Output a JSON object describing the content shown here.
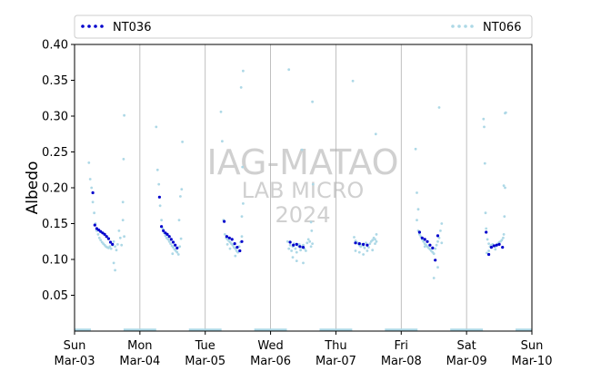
{
  "chart_data": {
    "type": "scatter",
    "ylabel": "Albedo",
    "xlabel": "",
    "ylim": [
      0.0,
      0.4
    ],
    "yticks": [
      "0.05",
      "0.10",
      "0.15",
      "0.20",
      "0.25",
      "0.30",
      "0.35",
      "0.40"
    ],
    "xlim_days": [
      0,
      7
    ],
    "xticks": [
      {
        "day": "Sun",
        "date": "Mar-03"
      },
      {
        "day": "Mon",
        "date": "Mar-04"
      },
      {
        "day": "Tue",
        "date": "Mar-05"
      },
      {
        "day": "Wed",
        "date": "Mar-06"
      },
      {
        "day": "Thu",
        "date": "Mar-07"
      },
      {
        "day": "Fri",
        "date": "Mar-08"
      },
      {
        "day": "Sat",
        "date": "Mar-09"
      },
      {
        "day": "Sun",
        "date": "Mar-10"
      }
    ],
    "grid": "vertical at day boundaries",
    "legend_placement": "top, outside plot",
    "watermark": {
      "line1": "IAG-MATAO",
      "line2": "LAB MICRO",
      "line3": "2024"
    },
    "series": [
      {
        "name": "NT036",
        "color": "#0000cc",
        "marker": "dot",
        "day_points": [
          [
            [
              0.28,
              0.193
            ],
            [
              0.31,
              0.148
            ],
            [
              0.34,
              0.143
            ],
            [
              0.37,
              0.141
            ],
            [
              0.4,
              0.139
            ],
            [
              0.43,
              0.137
            ],
            [
              0.46,
              0.135
            ],
            [
              0.49,
              0.132
            ],
            [
              0.52,
              0.129
            ],
            [
              0.55,
              0.124
            ],
            [
              0.58,
              0.121
            ]
          ],
          [
            [
              0.3,
              0.187
            ],
            [
              0.33,
              0.146
            ],
            [
              0.36,
              0.14
            ],
            [
              0.39,
              0.137
            ],
            [
              0.42,
              0.135
            ],
            [
              0.45,
              0.132
            ],
            [
              0.48,
              0.128
            ],
            [
              0.51,
              0.124
            ],
            [
              0.54,
              0.12
            ],
            [
              0.57,
              0.116
            ]
          ],
          [
            [
              0.29,
              0.153
            ],
            [
              0.33,
              0.132
            ],
            [
              0.37,
              0.13
            ],
            [
              0.41,
              0.128
            ],
            [
              0.45,
              0.122
            ],
            [
              0.49,
              0.117
            ],
            [
              0.53,
              0.112
            ],
            [
              0.56,
              0.125
            ]
          ],
          [
            [
              0.3,
              0.124
            ],
            [
              0.35,
              0.12
            ],
            [
              0.4,
              0.121
            ],
            [
              0.45,
              0.118
            ],
            [
              0.5,
              0.117
            ]
          ],
          [
            [
              0.3,
              0.123
            ],
            [
              0.36,
              0.122
            ],
            [
              0.42,
              0.121
            ],
            [
              0.48,
              0.12
            ]
          ],
          [
            [
              0.28,
              0.138
            ],
            [
              0.32,
              0.13
            ],
            [
              0.36,
              0.128
            ],
            [
              0.4,
              0.125
            ],
            [
              0.44,
              0.12
            ],
            [
              0.48,
              0.116
            ],
            [
              0.52,
              0.099
            ],
            [
              0.56,
              0.133
            ]
          ],
          [
            [
              0.3,
              0.138
            ],
            [
              0.34,
              0.107
            ],
            [
              0.38,
              0.117
            ],
            [
              0.42,
              0.119
            ],
            [
              0.46,
              0.12
            ],
            [
              0.5,
              0.121
            ],
            [
              0.55,
              0.117
            ]
          ]
        ]
      },
      {
        "name": "NT066",
        "color": "#add8e6",
        "marker": "dot",
        "day_points": [
          [
            [
              0.22,
              0.235
            ],
            [
              0.24,
              0.212
            ],
            [
              0.26,
              0.2
            ],
            [
              0.28,
              0.18
            ],
            [
              0.3,
              0.165
            ],
            [
              0.32,
              0.15
            ],
            [
              0.34,
              0.14
            ],
            [
              0.36,
              0.135
            ],
            [
              0.38,
              0.13
            ],
            [
              0.4,
              0.127
            ],
            [
              0.42,
              0.124
            ],
            [
              0.44,
              0.122
            ],
            [
              0.46,
              0.12
            ],
            [
              0.48,
              0.118
            ],
            [
              0.5,
              0.117
            ],
            [
              0.52,
              0.116
            ],
            [
              0.54,
              0.118
            ],
            [
              0.56,
              0.115
            ],
            [
              0.58,
              0.12
            ],
            [
              0.6,
              0.125
            ],
            [
              0.62,
              0.118
            ],
            [
              0.64,
              0.113
            ],
            [
              0.66,
              0.121
            ],
            [
              0.68,
              0.14
            ],
            [
              0.7,
              0.13
            ],
            [
              0.72,
              0.12
            ],
            [
              0.74,
              0.155
            ],
            [
              0.62,
              0.085
            ],
            [
              0.6,
              0.095
            ],
            [
              0.76,
              0.301
            ],
            [
              0.75,
              0.24
            ],
            [
              0.74,
              0.18
            ],
            [
              0.76,
              0.132
            ]
          ],
          [
            [
              0.25,
              0.285
            ],
            [
              0.27,
              0.225
            ],
            [
              0.29,
              0.205
            ],
            [
              0.31,
              0.175
            ],
            [
              0.33,
              0.155
            ],
            [
              0.35,
              0.143
            ],
            [
              0.37,
              0.137
            ],
            [
              0.39,
              0.133
            ],
            [
              0.41,
              0.13
            ],
            [
              0.43,
              0.128
            ],
            [
              0.45,
              0.125
            ],
            [
              0.47,
              0.122
            ],
            [
              0.49,
              0.119
            ],
            [
              0.51,
              0.117
            ],
            [
              0.53,
              0.114
            ],
            [
              0.55,
              0.112
            ],
            [
              0.57,
              0.11
            ],
            [
              0.59,
              0.107
            ],
            [
              0.61,
              0.118
            ],
            [
              0.63,
              0.129
            ],
            [
              0.6,
              0.155
            ],
            [
              0.62,
              0.188
            ],
            [
              0.64,
              0.198
            ],
            [
              0.65,
              0.264
            ],
            [
              0.5,
              0.108
            ]
          ],
          [
            [
              0.24,
              0.306
            ],
            [
              0.26,
              0.265
            ],
            [
              0.28,
              0.155
            ],
            [
              0.3,
              0.135
            ],
            [
              0.32,
              0.13
            ],
            [
              0.34,
              0.128
            ],
            [
              0.36,
              0.126
            ],
            [
              0.38,
              0.124
            ],
            [
              0.4,
              0.122
            ],
            [
              0.42,
              0.12
            ],
            [
              0.44,
              0.117
            ],
            [
              0.46,
              0.115
            ],
            [
              0.48,
              0.112
            ],
            [
              0.5,
              0.11
            ],
            [
              0.52,
              0.118
            ],
            [
              0.54,
              0.124
            ],
            [
              0.56,
              0.132
            ],
            [
              0.46,
              0.105
            ],
            [
              0.34,
              0.121
            ],
            [
              0.38,
              0.115
            ],
            [
              0.57,
              0.229
            ],
            [
              0.55,
              0.34
            ],
            [
              0.58,
              0.363
            ],
            [
              0.56,
              0.16
            ],
            [
              0.58,
              0.178
            ]
          ],
          [
            [
              0.26,
              0.125
            ],
            [
              0.28,
              0.115
            ],
            [
              0.3,
              0.12
            ],
            [
              0.32,
              0.112
            ],
            [
              0.34,
              0.118
            ],
            [
              0.36,
              0.122
            ],
            [
              0.38,
              0.115
            ],
            [
              0.4,
              0.11
            ],
            [
              0.42,
              0.119
            ],
            [
              0.44,
              0.121
            ],
            [
              0.46,
              0.113
            ],
            [
              0.48,
              0.117
            ],
            [
              0.5,
              0.12
            ],
            [
              0.52,
              0.115
            ],
            [
              0.54,
              0.112
            ],
            [
              0.56,
              0.123
            ],
            [
              0.58,
              0.128
            ],
            [
              0.6,
              0.125
            ],
            [
              0.62,
              0.118
            ],
            [
              0.64,
              0.122
            ],
            [
              0.34,
              0.103
            ],
            [
              0.4,
              0.098
            ],
            [
              0.5,
              0.095
            ],
            [
              0.48,
              0.253
            ],
            [
              0.65,
              0.205
            ],
            [
              0.28,
              0.365
            ],
            [
              0.64,
              0.32
            ],
            [
              0.62,
              0.152
            ],
            [
              0.63,
              0.14
            ]
          ],
          [
            [
              0.26,
              0.349
            ],
            [
              0.28,
              0.131
            ],
            [
              0.3,
              0.126
            ],
            [
              0.32,
              0.124
            ],
            [
              0.34,
              0.122
            ],
            [
              0.36,
              0.12
            ],
            [
              0.38,
              0.118
            ],
            [
              0.4,
              0.121
            ],
            [
              0.42,
              0.119
            ],
            [
              0.44,
              0.116
            ],
            [
              0.46,
              0.123
            ],
            [
              0.48,
              0.12
            ],
            [
              0.5,
              0.117
            ],
            [
              0.52,
              0.122
            ],
            [
              0.54,
              0.125
            ],
            [
              0.56,
              0.127
            ],
            [
              0.58,
              0.13
            ],
            [
              0.6,
              0.128
            ],
            [
              0.62,
              0.125
            ],
            [
              0.36,
              0.11
            ],
            [
              0.42,
              0.107
            ],
            [
              0.48,
              0.112
            ],
            [
              0.6,
              0.122
            ],
            [
              0.3,
              0.112
            ],
            [
              0.61,
              0.275
            ],
            [
              0.62,
              0.135
            ],
            [
              0.56,
              0.113
            ]
          ],
          [
            [
              0.22,
              0.254
            ],
            [
              0.24,
              0.193
            ],
            [
              0.26,
              0.14
            ],
            [
              0.28,
              0.135
            ],
            [
              0.3,
              0.132
            ],
            [
              0.32,
              0.128
            ],
            [
              0.34,
              0.125
            ],
            [
              0.36,
              0.122
            ],
            [
              0.38,
              0.12
            ],
            [
              0.4,
              0.118
            ],
            [
              0.42,
              0.116
            ],
            [
              0.44,
              0.114
            ],
            [
              0.46,
              0.112
            ],
            [
              0.48,
              0.11
            ],
            [
              0.5,
              0.108
            ],
            [
              0.52,
              0.115
            ],
            [
              0.54,
              0.12
            ],
            [
              0.56,
              0.125
            ],
            [
              0.58,
              0.13
            ],
            [
              0.6,
              0.14
            ],
            [
              0.62,
              0.15
            ],
            [
              0.26,
              0.17
            ],
            [
              0.24,
              0.155
            ],
            [
              0.5,
              0.074
            ],
            [
              0.56,
              0.089
            ],
            [
              0.58,
              0.312
            ],
            [
              0.62,
              0.123
            ],
            [
              0.36,
              0.118
            ]
          ],
          [
            [
              0.26,
              0.296
            ],
            [
              0.27,
              0.285
            ],
            [
              0.28,
              0.234
            ],
            [
              0.29,
              0.165
            ],
            [
              0.3,
              0.143
            ],
            [
              0.32,
              0.128
            ],
            [
              0.34,
              0.122
            ],
            [
              0.36,
              0.118
            ],
            [
              0.38,
              0.12
            ],
            [
              0.4,
              0.121
            ],
            [
              0.42,
              0.119
            ],
            [
              0.44,
              0.118
            ],
            [
              0.46,
              0.12
            ],
            [
              0.48,
              0.122
            ],
            [
              0.5,
              0.124
            ],
            [
              0.52,
              0.125
            ],
            [
              0.54,
              0.127
            ],
            [
              0.56,
              0.13
            ],
            [
              0.57,
              0.135
            ],
            [
              0.58,
              0.16
            ],
            [
              0.57,
              0.203
            ],
            [
              0.59,
              0.2
            ],
            [
              0.59,
              0.304
            ],
            [
              0.6,
              0.305
            ],
            [
              0.31,
              0.109
            ],
            [
              0.34,
              0.112
            ],
            [
              0.44,
              0.114
            ]
          ]
        ]
      }
    ]
  }
}
